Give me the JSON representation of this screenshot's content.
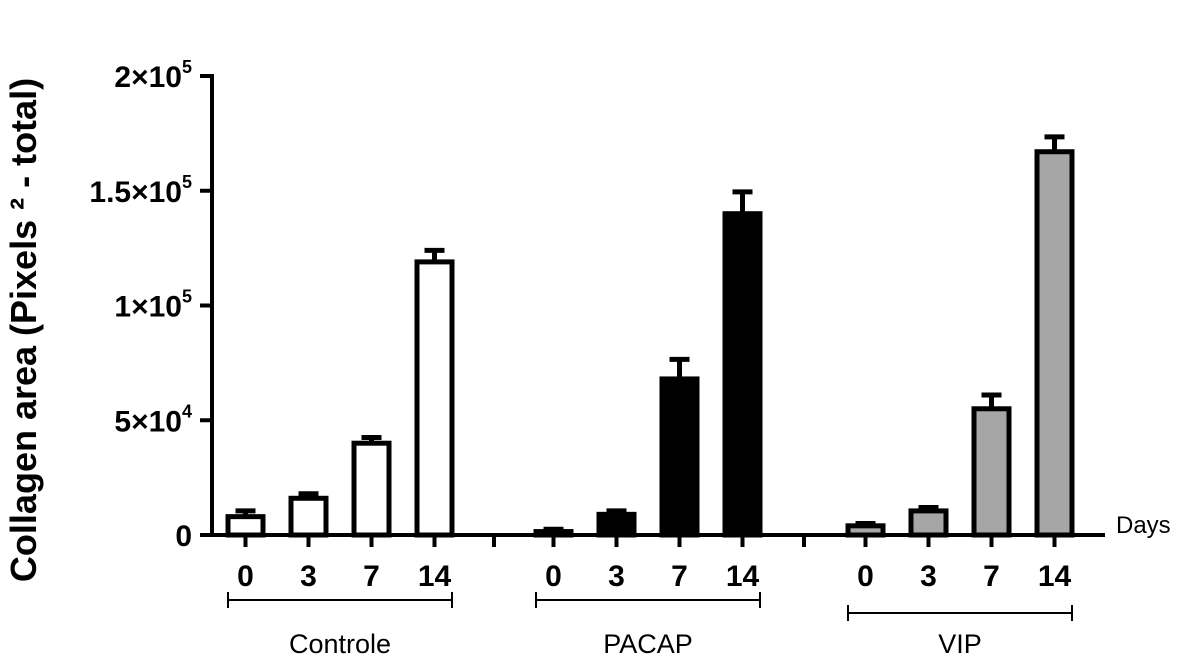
{
  "chart_data": {
    "type": "bar",
    "ylabel": "Collagen area (Pixels ² - total)",
    "x_unit_label": "Days",
    "ylim": [
      0,
      200000
    ],
    "yticks": [
      {
        "value": 0,
        "mantissa": "0",
        "exp": ""
      },
      {
        "value": 50000,
        "mantissa": "5×10",
        "exp": "4"
      },
      {
        "value": 100000,
        "mantissa": "1×10",
        "exp": "5"
      },
      {
        "value": 150000,
        "mantissa": "1.5×10",
        "exp": "5"
      },
      {
        "value": 200000,
        "mantissa": "2×10",
        "exp": "5"
      }
    ],
    "categories": [
      "0",
      "3",
      "7",
      "14"
    ],
    "groups": [
      {
        "name": "Controle",
        "fill": "#ffffff",
        "values": [
          8000,
          16000,
          40000,
          119000
        ],
        "errors": [
          2500,
          2000,
          2500,
          5000
        ]
      },
      {
        "name": "PACAP",
        "fill": "#000000",
        "values": [
          1500,
          9000,
          68000,
          140000
        ],
        "errors": [
          1000,
          1500,
          8500,
          9500
        ]
      },
      {
        "name": "VIP",
        "fill": "#a6a6a6",
        "values": [
          4000,
          10500,
          55000,
          167000
        ],
        "errors": [
          1000,
          1500,
          6000,
          6500
        ]
      }
    ]
  }
}
